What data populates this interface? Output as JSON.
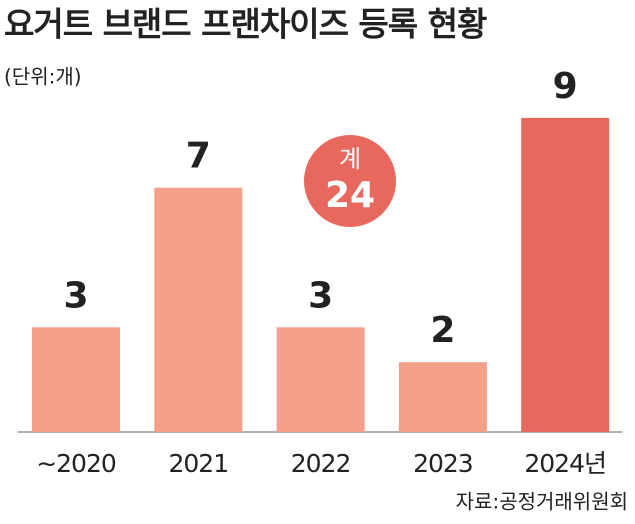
{
  "chart_data": {
    "type": "bar",
    "title": "요거트 브랜드 프랜차이즈 등록 현황",
    "unit": "(단위:개)",
    "categories": [
      "∼2020",
      "2021",
      "2022",
      "2023",
      "2024년"
    ],
    "values": [
      3,
      7,
      3,
      2,
      9
    ],
    "colors": [
      "#f4a08a",
      "#f4a08a",
      "#f4a08a",
      "#f4a08a",
      "#e8685e"
    ],
    "total": {
      "label": "계",
      "value": 24,
      "color": "#e8685e"
    },
    "source": "자료:공정거래위원회"
  }
}
